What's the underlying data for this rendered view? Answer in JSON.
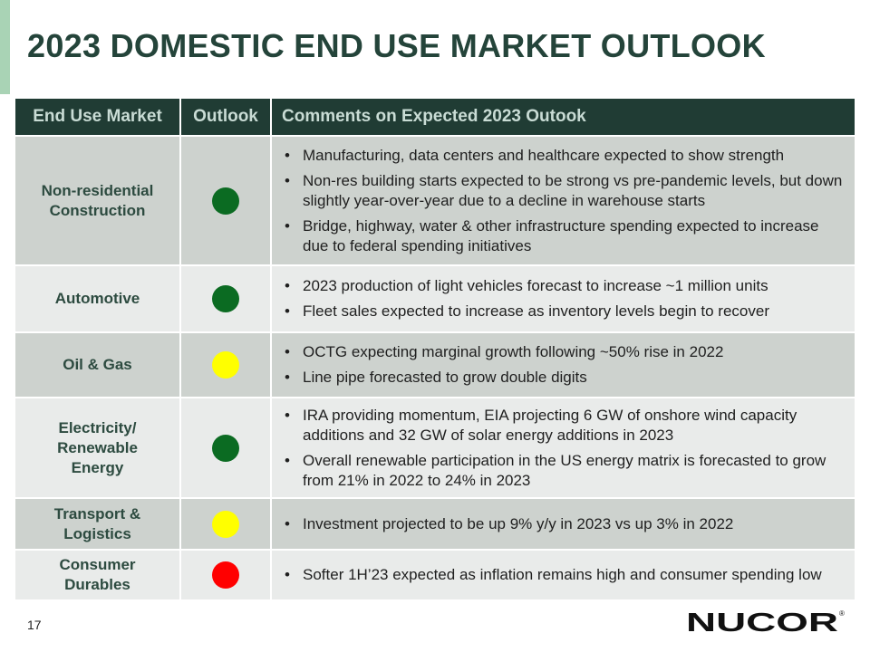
{
  "title": "2023 DOMESTIC END USE MARKET OUTLOOK",
  "table": {
    "headers": [
      "End Use Market",
      "Outlook",
      "Comments on Expected 2023 Outook"
    ],
    "rows": [
      {
        "market": "Non-residential Construction",
        "outlook": "green",
        "outlook_color": "#0b6b22",
        "comments": [
          "Manufacturing, data centers and healthcare expected to show strength",
          "Non-res building starts expected to be strong vs pre-pandemic levels, but down slightly year-over-year due to a decline in warehouse starts",
          "Bridge, highway, water & other infrastructure spending expected to increase due to federal spending initiatives"
        ]
      },
      {
        "market": "Automotive",
        "outlook": "green",
        "outlook_color": "#0b6b22",
        "comments": [
          "2023 production of light vehicles forecast to increase ~1 million units",
          "Fleet sales expected to increase as inventory levels begin to recover"
        ]
      },
      {
        "market": "Oil & Gas",
        "outlook": "yellow",
        "outlook_color": "#ffff00",
        "comments": [
          "OCTG expecting marginal growth following ~50% rise in 2022",
          "Line pipe forecasted to grow double digits"
        ]
      },
      {
        "market": "Electricity/ Renewable Energy",
        "outlook": "green",
        "outlook_color": "#0b6b22",
        "comments": [
          "IRA providing momentum, EIA projecting 6 GW of onshore wind capacity additions and 32 GW of solar energy additions in 2023",
          "Overall renewable participation in the US energy matrix is forecasted to grow from 21% in 2022 to 24% in 2023"
        ]
      },
      {
        "market": "Transport & Logistics",
        "outlook": "yellow",
        "outlook_color": "#ffff00",
        "comments": [
          "Investment projected to be up 9% y/y in 2023 vs up 3% in 2022"
        ]
      },
      {
        "market": "Consumer Durables",
        "outlook": "red",
        "outlook_color": "#ff0000",
        "comments": [
          "Softer 1H’23 expected as inflation remains high and consumer spending low"
        ]
      }
    ]
  },
  "footer": {
    "page_number": "17",
    "logo_text": "NUCOR",
    "logo_mark": "®"
  },
  "colors": {
    "title": "#24443a",
    "header_bg": "#203c34",
    "row_dark": "#cdd2ce",
    "row_light": "#e9ebea",
    "accent": "#a9d3b5"
  }
}
